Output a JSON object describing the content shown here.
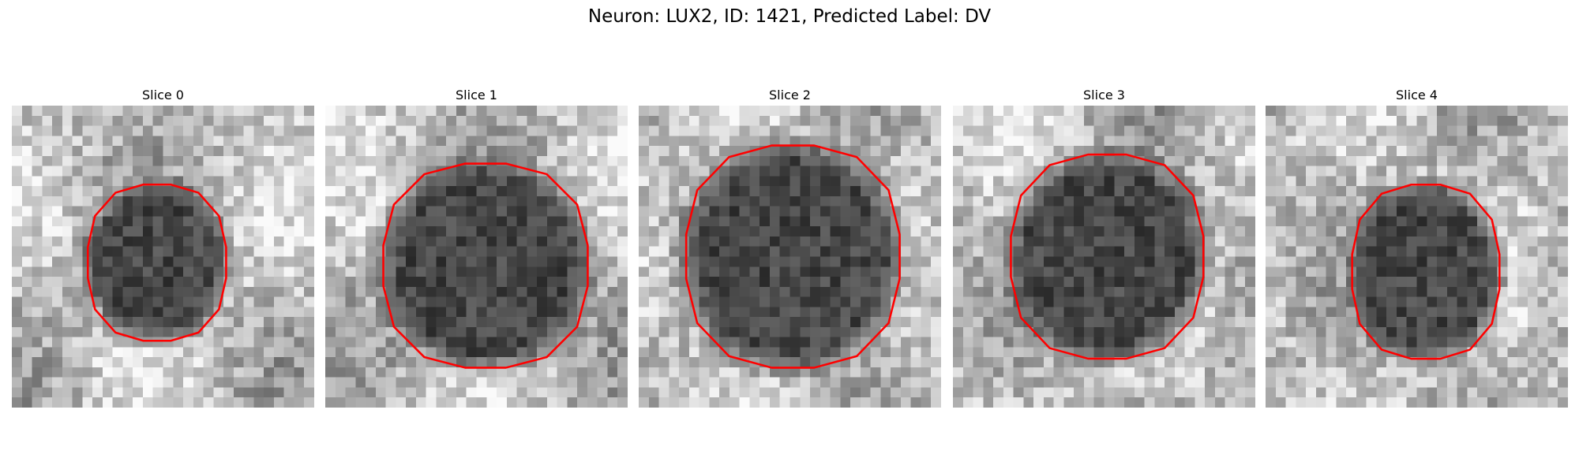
{
  "title": "Neuron: LUX2, ID: 1421, Predicted Label: DV",
  "panels": [
    {
      "title": "Slice 0"
    },
    {
      "title": "Slice 1"
    },
    {
      "title": "Slice 2"
    },
    {
      "title": "Slice 3"
    },
    {
      "title": "Slice 4"
    }
  ]
}
